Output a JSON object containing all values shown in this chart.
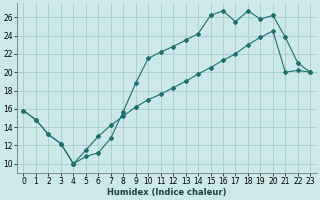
{
  "xlabel": "Humidex (Indice chaleur)",
  "bg_color": "#cce8e8",
  "grid_color": "#aacccc",
  "line_color": "#1a7070",
  "xlim": [
    -0.5,
    23.5
  ],
  "ylim": [
    9.0,
    27.5
  ],
  "xticks": [
    0,
    1,
    2,
    3,
    4,
    5,
    6,
    7,
    8,
    9,
    10,
    11,
    12,
    13,
    14,
    15,
    16,
    17,
    18,
    19,
    20,
    21,
    22,
    23
  ],
  "yticks": [
    10,
    12,
    14,
    16,
    18,
    20,
    22,
    24,
    26
  ],
  "line1_x": [
    0,
    1,
    2,
    3,
    4,
    5,
    6,
    7,
    8,
    9,
    10,
    11,
    12,
    13,
    14,
    15,
    16,
    17,
    18,
    19,
    20,
    21,
    22,
    23
  ],
  "line1_y": [
    15.8,
    14.8,
    13.2,
    12.2,
    10.0,
    10.8,
    11.2,
    12.8,
    15.7,
    18.8,
    21.5,
    22.2,
    22.8,
    23.5,
    24.2,
    26.2,
    26.7,
    25.5,
    26.7,
    25.8,
    26.2,
    23.8,
    21.0,
    20.0
  ],
  "line2_x": [
    0,
    1,
    2,
    3,
    4,
    5,
    6,
    7,
    8,
    9,
    10,
    11,
    12,
    13,
    14,
    15,
    16,
    17,
    18,
    19,
    20,
    21,
    22,
    23
  ],
  "line2_y": [
    15.8,
    14.8,
    13.2,
    12.2,
    10.0,
    11.5,
    13.0,
    14.2,
    15.2,
    16.2,
    17.0,
    17.6,
    18.3,
    19.0,
    19.8,
    20.5,
    21.3,
    22.0,
    23.0,
    23.8,
    24.5,
    20.0,
    20.2,
    20.0
  ],
  "xlabel_fontsize": 6,
  "tick_fontsize": 5.5
}
